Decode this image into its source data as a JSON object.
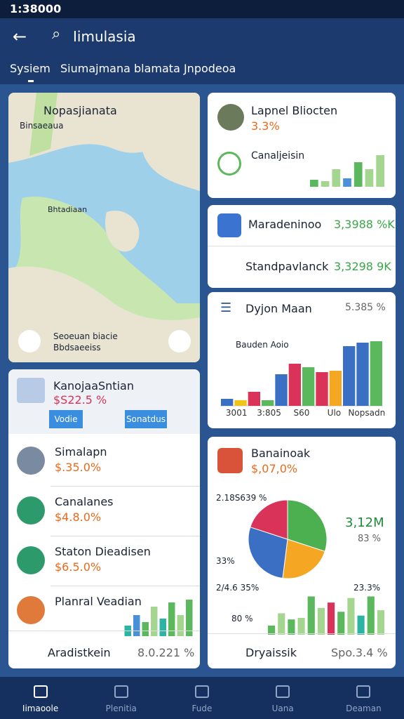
{
  "status": {
    "time": "1:38000"
  },
  "header": {
    "title": "Iimulasia"
  },
  "tabs": [
    "Sysiem",
    "Siumajmana blamata Jnpodeoa"
  ],
  "map": {
    "title": "Nopasjianata",
    "labels": [
      "Binsaeaua",
      "Bhtadiaan",
      "Seoeuan biacie",
      "Bbdsaeeiss"
    ]
  },
  "left_card": {
    "title": "KanojaaSntian",
    "value": "$S22.5 %",
    "buttons": [
      "Vodie",
      "Sonatdus"
    ]
  },
  "left_list": [
    {
      "title": "Simalapn",
      "value": "$.35.0%"
    },
    {
      "title": "Canalanes",
      "value": "$4.8.0%"
    },
    {
      "title": "Staton Dieadisen",
      "value": "$6.5.0%"
    },
    {
      "title": "Planral Veadian"
    }
  ],
  "left_chart": {
    "values": [
      15,
      30,
      20,
      42,
      25,
      48,
      30,
      52
    ],
    "colors": [
      "#2bb3a3",
      "#4a90d9",
      "#5cb85c",
      "#a5d68f",
      "#2bb3a3",
      "#5cb85c",
      "#a5d68f",
      "#5cb85c"
    ]
  },
  "left_footer": {
    "label": "Aradistkein",
    "value": "8.0.221 %"
  },
  "right_top": {
    "title": "Lapnel Bliocten",
    "value": "3.3%",
    "subtitle": "Canaljeisin",
    "chart": {
      "values": [
        10,
        8,
        25,
        12,
        35,
        25,
        45
      ],
      "colors": [
        "#5cb85c",
        "#a5d68f",
        "#a5d68f",
        "#4a90d9",
        "#5cb85c",
        "#a5d68f",
        "#a5d68f"
      ]
    }
  },
  "right_rows": [
    {
      "title": "Maradeninoo",
      "value": "3,3988 %K"
    },
    {
      "title": "Standpavlanck",
      "value": "3,3298 9K"
    }
  ],
  "chart_card": {
    "title": "Dyjon Maan",
    "value": "5.385 %",
    "subtitle": "Bauden Aoio",
    "categories": [
      "3001",
      "3:805",
      "S60",
      "Ulo",
      "Nopsadn"
    ],
    "values": [
      10,
      8,
      20,
      8,
      45,
      60,
      55,
      48,
      50,
      85,
      90,
      92
    ],
    "colors": [
      "#3a6fc4",
      "#f0c419",
      "#d9335a",
      "#5cb85c",
      "#3a6fc4",
      "#d9335a",
      "#5cb85c",
      "#d9335a",
      "#f5a623",
      "#3a6fc4",
      "#3a6fc4",
      "#5cb85c"
    ]
  },
  "pie_card": {
    "title": "Banainoak",
    "value": "$,07,0%",
    "top_label": "2.18S639 %",
    "right_value": "3,12M",
    "right_pct": "83 %",
    "left_label": "33%",
    "bottom_left": "2/4.6 35%",
    "bottom_right": "23.3%",
    "legend": "80 %",
    "pie": {
      "values": [
        30,
        22,
        28,
        20
      ],
      "colors": [
        "#4caf50",
        "#f5a623",
        "#3a6fc4",
        "#d9335a"
      ]
    },
    "chart": {
      "values": [
        12,
        28,
        20,
        22,
        50,
        35,
        42,
        30,
        48,
        25,
        50,
        32
      ],
      "colors": [
        "#5cb85c",
        "#a5d68f",
        "#5cb85c",
        "#a5d68f",
        "#5cb85c",
        "#a5d68f",
        "#d9335a",
        "#5cb85c",
        "#a5d68f",
        "#2bb3a3",
        "#5cb85c",
        "#a5d68f"
      ]
    }
  },
  "right_footer": {
    "label": "Dryaissik",
    "value": "Spo.3.4 %"
  },
  "nav": [
    "Iimaoole",
    "Plenitia",
    "Fude",
    "Uana",
    "Deaman"
  ]
}
